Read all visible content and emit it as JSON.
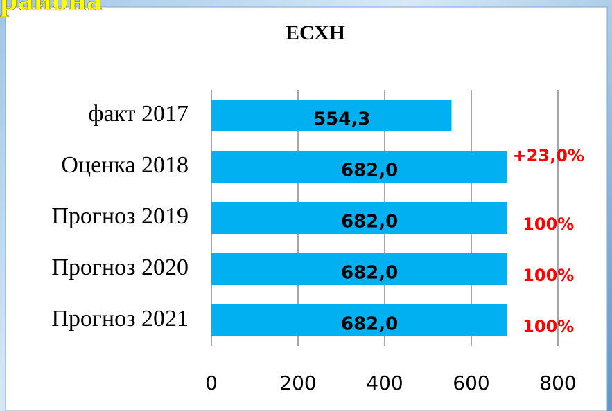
{
  "heading": "района",
  "chart_data": {
    "type": "barh",
    "title": "ЕСХН",
    "categories": [
      "факт 2017",
      "Оценка 2018",
      "Прогноз 2019",
      "Прогноз 2020",
      "Прогноз 2021"
    ],
    "values": [
      554.3,
      682.0,
      682.0,
      682.0,
      682.0
    ],
    "value_labels": [
      "554,3",
      "682,0",
      "682,0",
      "682,0",
      "682,0"
    ],
    "annotations": [
      null,
      "+23,0%",
      "100%",
      "100%",
      "100%"
    ],
    "color": "#00b0f0",
    "xlim": [
      0,
      800
    ],
    "xticks": [
      0,
      200,
      400,
      600,
      800
    ],
    "grid": true
  }
}
